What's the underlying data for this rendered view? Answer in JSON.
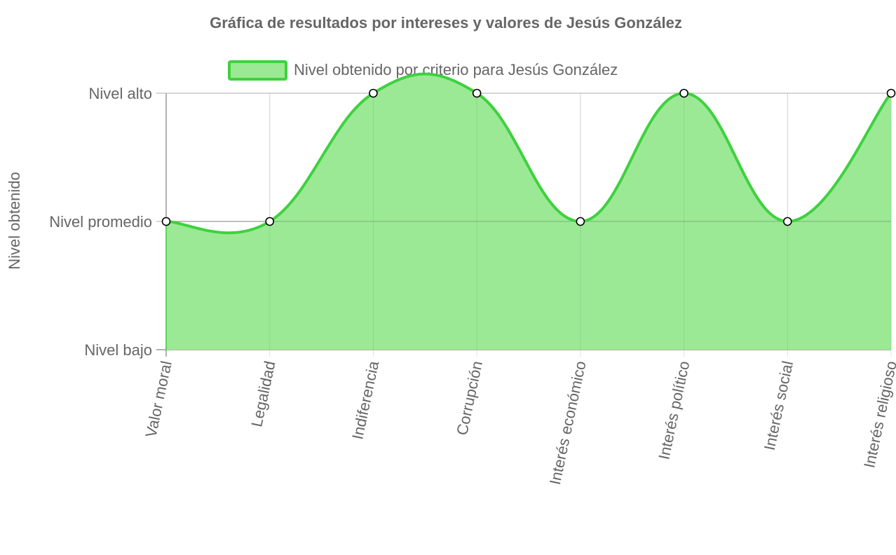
{
  "chart_data": {
    "type": "area",
    "title": "Gráfica de resultados por intereses y valores de Jesús González",
    "xlabel": "",
    "ylabel": "Nivel obtenido",
    "categories": [
      "Valor moral",
      "Legalidad",
      "Indiferencia",
      "Corrupción",
      "Interés económico",
      "Interés político",
      "Interés social",
      "Interés religioso"
    ],
    "y_tick_labels": [
      "Nivel bajo",
      "Nivel promedio",
      "Nivel alto"
    ],
    "ylim": [
      0,
      2
    ],
    "series": [
      {
        "name": "Nivel obtenido por criterio para Jesús González",
        "values": [
          1,
          1,
          2,
          2,
          1,
          2,
          1,
          2
        ],
        "color": "#3fd13f",
        "fill": "#9be995"
      }
    ],
    "legend_position": "top-center",
    "grid": true,
    "curve": "smooth"
  }
}
